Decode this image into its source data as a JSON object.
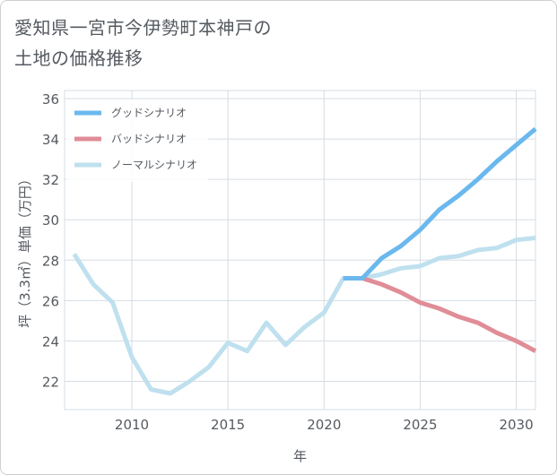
{
  "title": {
    "line1": "愛知県一宮市今伊勢町本神戸の",
    "line2": "土地の価格推移"
  },
  "colors": {
    "good": "#6ab8ee",
    "bad": "#e08d97",
    "normal": "#bfe0ee",
    "grid": "#d5dde4",
    "axis": "#555a60"
  },
  "chart_data": {
    "type": "line",
    "title": "愛知県一宮市今伊勢町本神戸の土地の価格推移",
    "xlabel": "年",
    "ylabel": "坪（3.3㎡）単価（万円）",
    "xlim": [
      2006.5,
      2031
    ],
    "ylim": [
      20.6,
      36.4
    ],
    "xticks": [
      2010,
      2015,
      2020,
      2025,
      2030
    ],
    "yticks": [
      22,
      24,
      26,
      28,
      30,
      32,
      34,
      36
    ],
    "legend_position": "top-left",
    "series": [
      {
        "name": "グッドシナリオ",
        "x": [
          2021,
          2022,
          2023,
          2024,
          2025,
          2026,
          2027,
          2028,
          2029,
          2030,
          2031
        ],
        "values": [
          27.1,
          27.1,
          28.1,
          28.7,
          29.5,
          30.5,
          31.2,
          32.0,
          32.9,
          33.7,
          34.5
        ]
      },
      {
        "name": "バッドシナリオ",
        "x": [
          2021,
          2022,
          2023,
          2024,
          2025,
          2026,
          2027,
          2028,
          2029,
          2030,
          2031
        ],
        "values": [
          27.1,
          27.1,
          26.8,
          26.4,
          25.9,
          25.6,
          25.2,
          24.9,
          24.4,
          24.0,
          23.5
        ]
      },
      {
        "name": "ノーマルシナリオ",
        "x": [
          2007,
          2008,
          2009,
          2010,
          2011,
          2012,
          2013,
          2014,
          2015,
          2016,
          2017,
          2018,
          2019,
          2020,
          2021,
          2022,
          2023,
          2024,
          2025,
          2026,
          2027,
          2028,
          2029,
          2030,
          2031
        ],
        "values": [
          28.3,
          26.8,
          25.9,
          23.2,
          21.6,
          21.4,
          22.0,
          22.7,
          23.9,
          23.5,
          24.9,
          23.8,
          24.7,
          25.4,
          27.1,
          27.1,
          27.3,
          27.6,
          27.7,
          28.1,
          28.2,
          28.5,
          28.6,
          29.0,
          29.1
        ]
      }
    ]
  }
}
